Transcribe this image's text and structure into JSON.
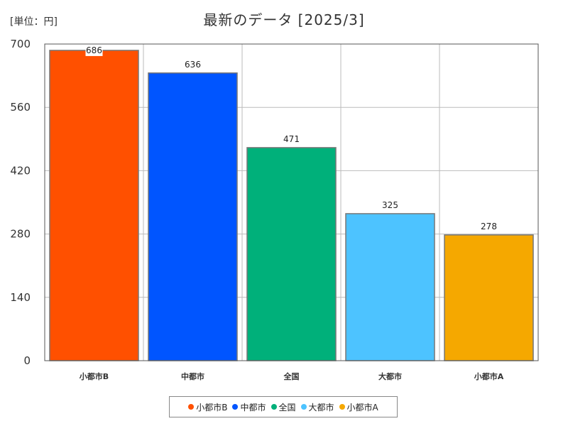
{
  "chart_data": {
    "type": "bar",
    "title": "最新のデータ [2025/3]",
    "unit_label": "[単位：円]",
    "categories": [
      "小都市B",
      "中都市",
      "全国",
      "大都市",
      "小都市A"
    ],
    "values": [
      686,
      636,
      471,
      325,
      278
    ],
    "colors": [
      "#ff5000",
      "#0055ff",
      "#00b07a",
      "#4dc3ff",
      "#f5a800"
    ],
    "ylim": [
      0,
      700
    ],
    "yticks": [
      0,
      140,
      280,
      420,
      560,
      700
    ],
    "ytick_labels": [
      "0",
      "140",
      "280",
      "420",
      "560",
      "700"
    ],
    "xlabel": "",
    "ylabel": "",
    "grid": true,
    "legend_position": "bottom-center",
    "legend": [
      {
        "label": "小都市B",
        "color": "#ff5000"
      },
      {
        "label": "中都市",
        "color": "#0055ff"
      },
      {
        "label": "全国",
        "color": "#00b07a"
      },
      {
        "label": "大都市",
        "color": "#4dc3ff"
      },
      {
        "label": "小都市A",
        "color": "#f5a800"
      }
    ]
  }
}
